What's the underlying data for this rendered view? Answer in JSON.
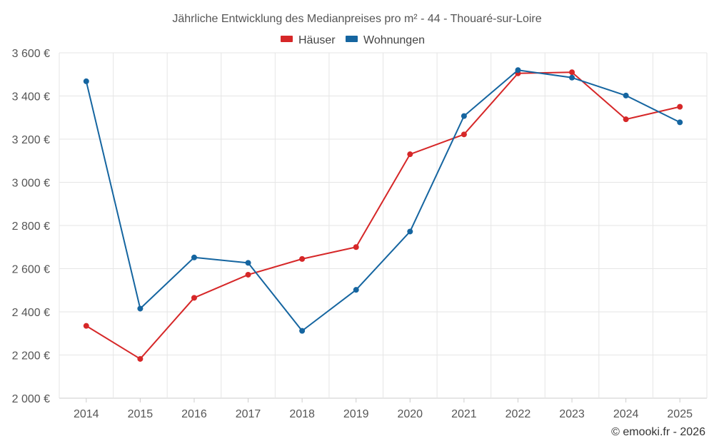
{
  "chart_data": {
    "type": "line",
    "title": "Jährliche Entwicklung des Medianpreises pro m² - 44 - Thouaré-sur-Loire",
    "categories": [
      "2014",
      "2015",
      "2016",
      "2017",
      "2018",
      "2019",
      "2020",
      "2021",
      "2022",
      "2023",
      "2024",
      "2025"
    ],
    "series": [
      {
        "name": "Häuser",
        "color": "#d62728",
        "values": [
          2335,
          2182,
          2465,
          2572,
          2645,
          2700,
          3130,
          3222,
          3505,
          3510,
          3292,
          3350
        ]
      },
      {
        "name": "Wohnungen",
        "color": "#1565a0",
        "values": [
          3468,
          2415,
          2652,
          2627,
          2312,
          2502,
          2772,
          3307,
          3520,
          3485,
          3402,
          3278
        ]
      }
    ],
    "ylim": [
      2000,
      3600
    ],
    "yticks": [
      2000,
      2200,
      2400,
      2600,
      2800,
      3000,
      3200,
      3400,
      3600
    ],
    "ytick_labels": [
      "2 000 €",
      "2 200 €",
      "2 400 €",
      "2 600 €",
      "2 800 €",
      "3 000 €",
      "3 200 €",
      "3 400 €",
      "3 600 €"
    ],
    "xlabel": "",
    "ylabel": "",
    "legend_position": "top-center",
    "grid": true
  },
  "credit": "© emooki.fr - 2026"
}
